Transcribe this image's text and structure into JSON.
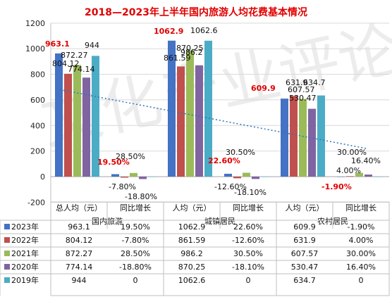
{
  "chart_data": {
    "type": "bar",
    "title": "2018—2023年上半年国内旅游人均花费基本情况",
    "ylim": [
      -200,
      1200
    ],
    "yticks": [
      -200,
      0,
      200,
      400,
      600,
      800,
      1000,
      1200
    ],
    "grid": true,
    "groups": [
      "国内旅游",
      "城镇居民",
      "农村居民"
    ],
    "columns": [
      "总人均（元）",
      "同比增长",
      "人均（元）",
      "同比增长",
      "人均（元）",
      "同比增长"
    ],
    "series": [
      {
        "name": "2023年",
        "color": "#4472c4",
        "values": [
          963.1,
          19.5,
          1062.9,
          22.6,
          609.9,
          -1.9
        ],
        "labels": [
          "963.1",
          "19.50%",
          "1062.9",
          "22.60%",
          "609.9",
          "-1.90%"
        ]
      },
      {
        "name": "2022年",
        "color": "#c0504d",
        "values": [
          804.12,
          -7.8,
          861.59,
          -12.6,
          631.9,
          4.0
        ],
        "labels": [
          "804.12",
          "-7.80%",
          "861.59",
          "-12.60%",
          "631.9",
          "4.00%"
        ]
      },
      {
        "name": "2021年",
        "color": "#9bbb59",
        "values": [
          872.27,
          28.5,
          986.2,
          30.5,
          607.57,
          30.0
        ],
        "labels": [
          "872.27",
          "28.50%",
          "986.2",
          "30.50%",
          "607.57",
          "30.00%"
        ]
      },
      {
        "name": "2020年",
        "color": "#8064a2",
        "values": [
          774.14,
          -18.8,
          870.25,
          -18.1,
          530.47,
          16.4
        ],
        "labels": [
          "774.14",
          "-18.80%",
          "870.25",
          "-18.10%",
          "530.47",
          "16.40%"
        ]
      },
      {
        "name": "2019年",
        "color": "#4bacc6",
        "values": [
          944,
          0,
          1062.6,
          0,
          634.7,
          0
        ],
        "labels": [
          "944",
          "0",
          "1062.6",
          "0",
          "634.7",
          "0"
        ]
      }
    ],
    "trendline": {
      "color": "#2e75b6",
      "style": "dotted"
    },
    "watermark": "文化产业评论"
  }
}
